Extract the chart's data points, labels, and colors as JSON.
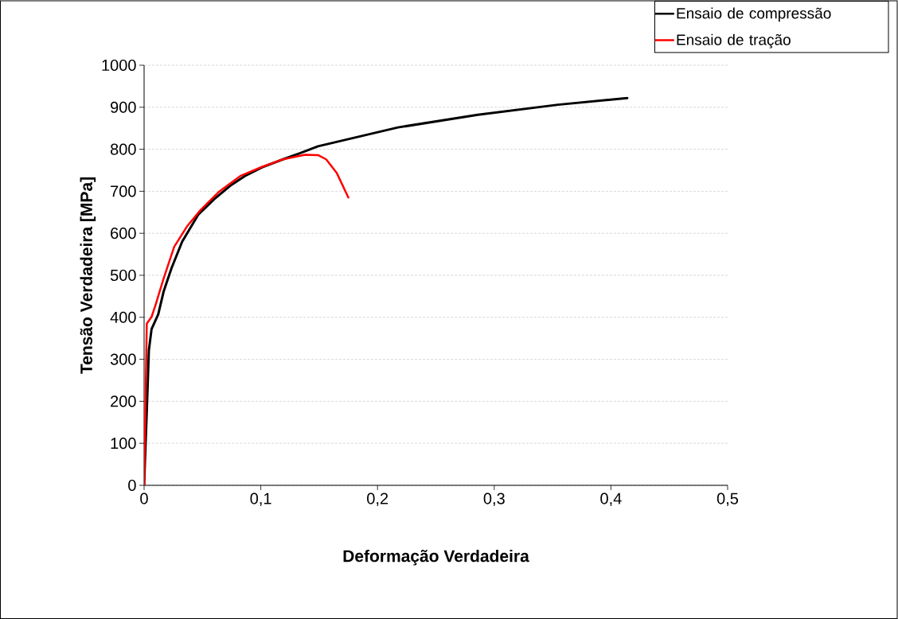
{
  "chart_data": {
    "type": "line",
    "xlabel": "Deformação Verdadeira",
    "ylabel": "Tensão Verdadeira [MPa]",
    "xlim": [
      0,
      0.5
    ],
    "ylim": [
      0,
      1000
    ],
    "xticks": [
      {
        "value": 0,
        "label": "0"
      },
      {
        "value": 0.1,
        "label": "0,1"
      },
      {
        "value": 0.2,
        "label": "0,2"
      },
      {
        "value": 0.3,
        "label": "0,3"
      },
      {
        "value": 0.4,
        "label": "0,4"
      },
      {
        "value": 0.5,
        "label": "0,5"
      }
    ],
    "yticks": [
      0,
      100,
      200,
      300,
      400,
      500,
      600,
      700,
      800,
      900,
      1000
    ],
    "grid": "y",
    "legend": "top right",
    "marker": "none",
    "line_style": "solid",
    "series": [
      {
        "name": "Ensaio de compressão",
        "color": "#000000",
        "x": [
          0,
          0.0023,
          0.0041,
          0.0064,
          0.0121,
          0.0167,
          0.0235,
          0.0326,
          0.0463,
          0.06,
          0.0737,
          0.0874,
          0.101,
          0.119,
          0.133,
          0.149,
          0.2176,
          0.286,
          0.3546,
          0.414
        ],
        "values": [
          0,
          177,
          322,
          372,
          407,
          461,
          517,
          580,
          644,
          681,
          713,
          738,
          757,
          776,
          790,
          807,
          852,
          882,
          906,
          922
        ]
      },
      {
        "name": "Ensaio de tração",
        "color": "#ff0000",
        "x": [
          0,
          0.0011,
          0.0023,
          0.0064,
          0.0098,
          0.0167,
          0.0258,
          0.0372,
          0.0486,
          0.0646,
          0.0829,
          0.101,
          0.119,
          0.138,
          0.149,
          0.156,
          0.165,
          0.175
        ],
        "values": [
          0,
          177,
          385,
          401,
          429,
          492,
          568,
          618,
          656,
          700,
          737,
          758,
          776,
          787,
          786,
          776,
          744,
          685
        ]
      }
    ]
  }
}
